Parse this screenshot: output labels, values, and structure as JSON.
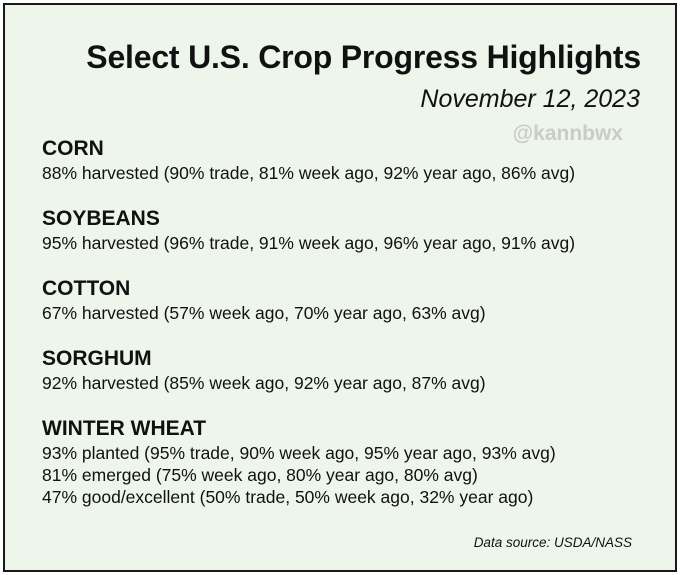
{
  "header": {
    "title": "Select U.S. Crop Progress Highlights",
    "date": "November 12, 2023",
    "handle": "@kannbwx"
  },
  "sections": [
    {
      "title": "CORN",
      "lines": [
        "88% harvested (90% trade, 81% week ago, 92% year ago, 86% avg)"
      ]
    },
    {
      "title": "SOYBEANS",
      "lines": [
        "95% harvested (96% trade, 91% week ago, 96% year ago, 91% avg)"
      ]
    },
    {
      "title": "COTTON",
      "lines": [
        "67% harvested (57% week ago, 70% year ago, 63% avg)"
      ]
    },
    {
      "title": "SORGHUM",
      "lines": [
        "92% harvested (85% week ago, 92% year ago, 87% avg)"
      ]
    },
    {
      "title": "WINTER WHEAT",
      "lines": [
        "93% planted (95% trade, 90% week ago, 95% year ago, 93% avg)",
        "81% emerged (75% week ago, 80% year ago, 80% avg)",
        "47% good/excellent (50% trade, 50% week ago, 32% year ago)"
      ]
    }
  ],
  "footer": {
    "source": "Data source: USDA/NASS"
  }
}
